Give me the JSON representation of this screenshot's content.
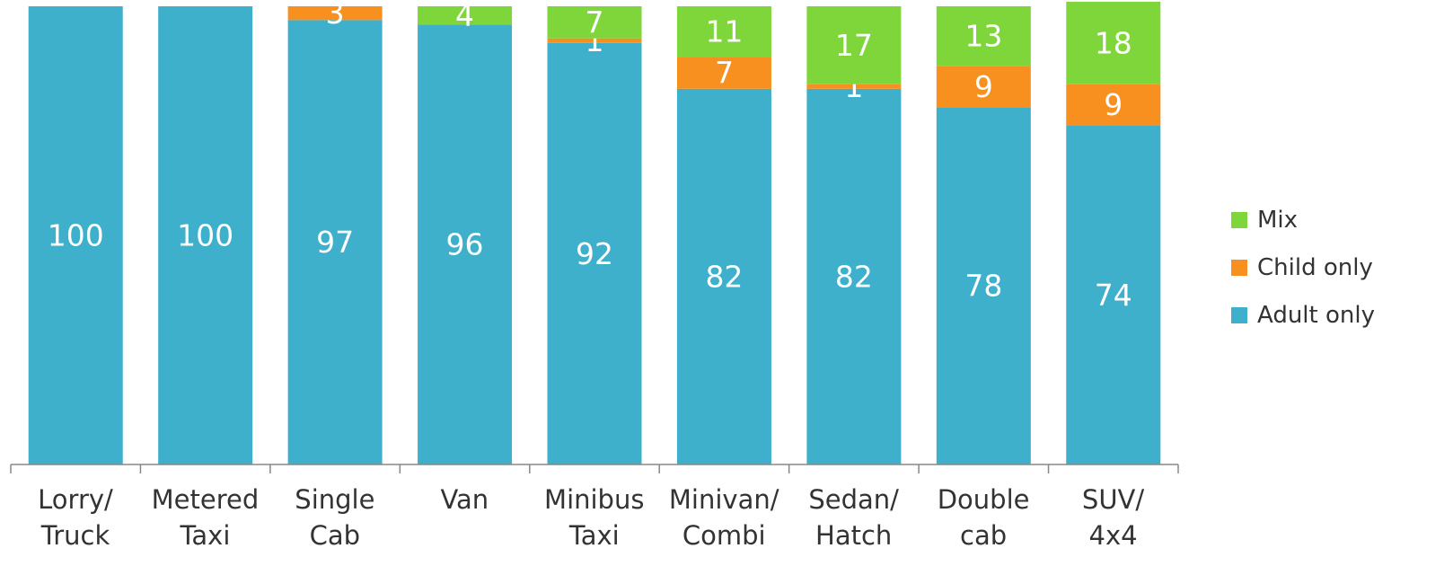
{
  "chart_data": {
    "type": "stacked_bar",
    "categories": [
      "Lorry/\nTruck",
      "Metered\nTaxi",
      "Single\nCab",
      "Van",
      "Minibus\nTaxi",
      "Minivan/\nCombi",
      "Sedan/\nHatch",
      "Double\ncab",
      "SUV/\n4x4"
    ],
    "series": [
      {
        "name": "Adult only",
        "color": "#3eb0cc",
        "values": [
          100,
          100,
          97,
          96,
          92,
          82,
          82,
          78,
          74
        ]
      },
      {
        "name": "Child only",
        "color": "#f7901e",
        "values": [
          0,
          0,
          3,
          0,
          1,
          7,
          1,
          9,
          9
        ]
      },
      {
        "name": "Mix",
        "color": "#7ed63b",
        "values": [
          0,
          0,
          0,
          4,
          7,
          11,
          17,
          13,
          18
        ]
      }
    ],
    "ylim": [
      0,
      100
    ],
    "legend": "right"
  }
}
